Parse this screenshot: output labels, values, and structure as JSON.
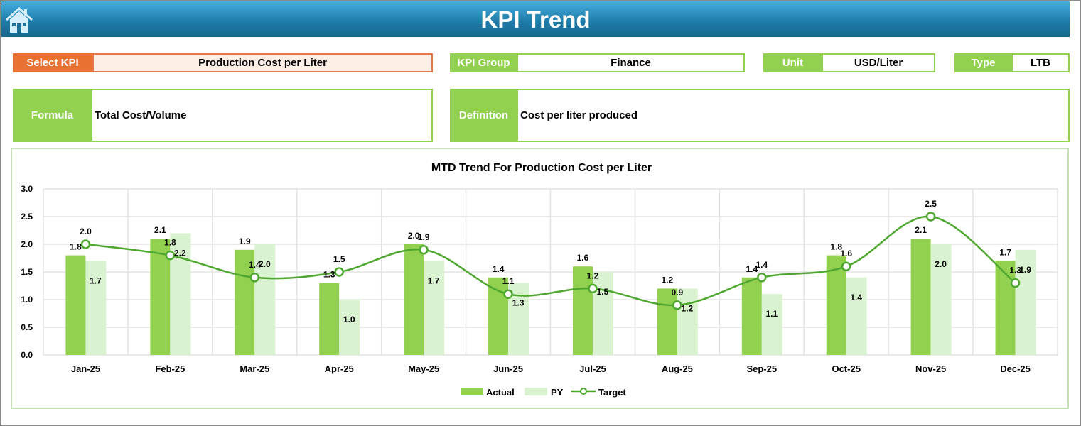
{
  "header": {
    "title": "KPI Trend",
    "home_icon": "home-icon"
  },
  "filters": {
    "select_kpi": {
      "label": "Select KPI",
      "value": "Production Cost per Liter"
    },
    "kpi_group": {
      "label": "KPI Group",
      "value": "Finance"
    },
    "unit": {
      "label": "Unit",
      "value": "USD/Liter"
    },
    "type": {
      "label": "Type",
      "value": "LTB"
    },
    "formula": {
      "label": "Formula",
      "value": "Total Cost/Volume"
    },
    "definition": {
      "label": "Definition",
      "value": "Cost per liter produced"
    }
  },
  "colors": {
    "header": "#1d7aa6",
    "accent_orange": "#e97132",
    "actual": "#92d050",
    "py": "#d9f2d0",
    "target": "#4ea72e"
  },
  "chart_data": {
    "type": "bar",
    "title": "MTD Trend For Production Cost per Liter",
    "categories": [
      "Jan-25",
      "Feb-25",
      "Mar-25",
      "Apr-25",
      "May-25",
      "Jun-25",
      "Jul-25",
      "Aug-25",
      "Sep-25",
      "Oct-25",
      "Nov-25",
      "Dec-25"
    ],
    "ylim": [
      0,
      3.0
    ],
    "yticks": [
      "0.0",
      "0.5",
      "1.0",
      "1.5",
      "2.0",
      "2.5",
      "3.0"
    ],
    "grid": true,
    "legend": "bottom",
    "series": [
      {
        "name": "Actual",
        "type": "bar",
        "values": [
          1.8,
          2.1,
          1.9,
          1.3,
          2.0,
          1.4,
          1.6,
          1.2,
          1.4,
          1.8,
          2.1,
          1.7
        ]
      },
      {
        "name": "PY",
        "type": "bar",
        "values": [
          1.7,
          2.2,
          2.0,
          1.0,
          1.7,
          1.3,
          1.5,
          1.2,
          1.1,
          1.4,
          2.0,
          1.9
        ]
      },
      {
        "name": "Target",
        "type": "line",
        "smooth": true,
        "values": [
          2.0,
          1.8,
          1.4,
          1.5,
          1.9,
          1.1,
          1.2,
          0.9,
          1.4,
          1.6,
          2.5,
          1.3
        ]
      }
    ]
  }
}
